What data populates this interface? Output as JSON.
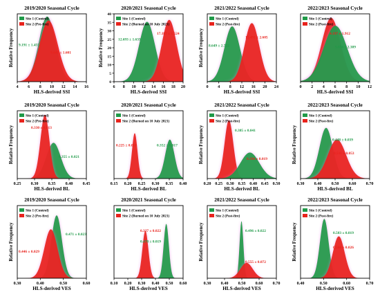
{
  "colors": {
    "site1": "#1f9a48",
    "site2": "#e8221c",
    "glow": "#ee7fe6",
    "axis": "#000000"
  },
  "chart_data": [
    {
      "type": "area",
      "title": "2019/2020 Seasonal Cycle",
      "xlabel": "HLS-derived SSI",
      "ylabel": "Relative Frequency",
      "xlim": [
        4,
        16
      ],
      "xticks": [
        "4",
        "6",
        "8",
        "10",
        "12",
        "14",
        "16"
      ],
      "show_yaxis": true,
      "legend": [
        {
          "label": "Site 1 (Control)",
          "color": "site1"
        },
        {
          "label": "Site 2 (Pre-fire)",
          "color": "site2"
        }
      ],
      "series": [
        {
          "mean": 9.191,
          "sd": 1.455,
          "label": "9.191 ± 1.455",
          "color": "site1",
          "height": 1.0
        },
        {
          "mean": 9.441,
          "sd": 1.601,
          "label": "9.441 ± 1.601",
          "color": "site2",
          "height": 0.94
        }
      ]
    },
    {
      "type": "area",
      "title": "2020/2021 Seasonal Cycle",
      "xlabel": "HLS-derived SSI",
      "ylabel": "Relative Frequency",
      "xlim": [
        6,
        20
      ],
      "xticks": [
        "6",
        "8",
        "10",
        "12",
        "14",
        "16",
        "18",
        "20"
      ],
      "yticks": [
        "0",
        "5",
        "10",
        "15",
        "20",
        "25",
        "30",
        "35",
        "40"
      ],
      "show_yaxis": true,
      "legend": [
        {
          "label": "Site 1 (Control)",
          "color": "site1"
        },
        {
          "label": "Site 2 (Burned on 10 July 2021)",
          "color": "site2"
        }
      ],
      "series": [
        {
          "mean": 12.693,
          "sd": 1.633,
          "label": "12.693 ± 1.633",
          "color": "site1",
          "height": 0.92
        },
        {
          "mean": 17.187,
          "sd": 1.524,
          "label": "17.187 ± 1.524",
          "color": "site2",
          "height": 0.95
        }
      ]
    },
    {
      "type": "area",
      "title": "2021/2022 Seasonal Cycle",
      "xlabel": "HLS-derived SSI",
      "ylabel": "Relative Frequency",
      "xlim": [
        0,
        24
      ],
      "xticks": [
        "0",
        "4",
        "8",
        "12",
        "16",
        "20",
        "24"
      ],
      "show_yaxis": true,
      "legend": [
        {
          "label": "Site 1 (Control)",
          "color": "site1"
        },
        {
          "label": "Site 2 (Post-fire)",
          "color": "site2"
        }
      ],
      "series": [
        {
          "mean": 8.649,
          "sd": 2.722,
          "label": "8.649 ± 2.722",
          "color": "site1",
          "height": 0.85
        },
        {
          "mean": 15.491,
          "sd": 2.605,
          "label": "15.491 ± 2.605",
          "color": "site2",
          "height": 0.9
        }
      ]
    },
    {
      "type": "area",
      "title": "2022/2023 Seasonal Cycle",
      "xlabel": "HLS-derived SSI",
      "ylabel": "",
      "xlim": [
        -2,
        12
      ],
      "xticks": [
        "0",
        "2",
        "4",
        "6",
        "8",
        "10",
        "12"
      ],
      "show_yaxis": false,
      "legend": [
        {
          "label": "Site 1 (Control)",
          "color": "site1"
        },
        {
          "label": "Site 2 (Post-fire)",
          "color": "site2"
        }
      ],
      "series": [
        {
          "mean": 4.197,
          "sd": 1.912,
          "label": "4.197 ± 1.912",
          "color": "site2",
          "height": 0.98
        },
        {
          "mean": 5.056,
          "sd": 2.389,
          "label": "5.056 ± 2.389",
          "color": "site1",
          "height": 0.86
        }
      ]
    },
    {
      "type": "area",
      "title": "2019/2020 Seasonal Cycle",
      "xlabel": "HLS-derived BL",
      "ylabel": "Relative Frequency",
      "xlim": [
        0.25,
        0.45
      ],
      "xticks": [
        "0.25",
        "0.30",
        "0.35",
        "0.40",
        "0.45"
      ],
      "show_yaxis": true,
      "legend": [
        {
          "label": "Site 1 (Control)",
          "color": "site1"
        },
        {
          "label": "Site 2 (Pre-fire)",
          "color": "site2"
        }
      ],
      "series": [
        {
          "mean": 0.355,
          "sd": 0.021,
          "label": "0.355 ± 0.021",
          "color": "site1",
          "height": 0.55
        },
        {
          "mean": 0.33,
          "sd": 0.013,
          "label": "0.330 ± 0.013",
          "color": "site2",
          "height": 0.98
        }
      ]
    },
    {
      "type": "area",
      "title": "2020/2021 Seasonal Cycle",
      "xlabel": "HLS-derived BL",
      "ylabel": "",
      "xlim": [
        0.15,
        0.4
      ],
      "xticks": [
        "0.15",
        "0.20",
        "0.25",
        "0.30",
        "0.35",
        "0.40"
      ],
      "show_yaxis": true,
      "legend": [
        {
          "label": "Site 1 (Control)",
          "color": "site1"
        },
        {
          "label": "Site 2 (Burned on 10 July 2021)",
          "color": "site2"
        }
      ],
      "series": [
        {
          "mean": 0.225,
          "sd": 0.01,
          "label": "0.225 ± 0.010",
          "color": "site2",
          "height": 0.7
        },
        {
          "mean": 0.352,
          "sd": 0.017,
          "label": "0.352 ± 0.017",
          "color": "site1",
          "height": 0.6
        }
      ]
    },
    {
      "type": "area",
      "title": "2021/2022 Seasonal Cycle",
      "xlabel": "HLS-derived BL",
      "ylabel": "Relative Frequency",
      "xlim": [
        0.2,
        0.5
      ],
      "xticks": [
        "0.20",
        "0.25",
        "0.30",
        "0.35",
        "0.40",
        "0.45",
        "0.50"
      ],
      "show_yaxis": true,
      "legend": [
        {
          "label": "Site 1 (Control)",
          "color": "site1"
        },
        {
          "label": "Site 2 (Post-fire)",
          "color": "site2"
        }
      ],
      "series": [
        {
          "mean": 0.294,
          "sd": 0.019,
          "label": "0.294 ± 0.019",
          "color": "site2",
          "height": 0.9
        },
        {
          "mean": 0.385,
          "sd": 0.041,
          "label": "0.385 ± 0.041",
          "color": "site1",
          "height": 0.4
        }
      ]
    },
    {
      "type": "area",
      "title": "2022/2023 Seasonal Cycle",
      "xlabel": "HLS-derived BL",
      "ylabel": "Relative Frequency",
      "xlim": [
        0.3,
        0.7
      ],
      "xticks": [
        "0.30",
        "0.40",
        "0.50",
        "0.60",
        "0.70"
      ],
      "show_yaxis": true,
      "legend": [
        {
          "label": "Site 1 (Control)",
          "color": "site1"
        },
        {
          "label": "Site 2 (Post-fire)",
          "color": "site2"
        }
      ],
      "series": [
        {
          "mean": 0.448,
          "sd": 0.039,
          "label": "0.448 ± 0.039",
          "color": "site1",
          "height": 0.78
        },
        {
          "mean": 0.511,
          "sd": 0.053,
          "label": "0.511 ± 0.053",
          "color": "site2",
          "height": 0.6
        }
      ]
    },
    {
      "type": "area",
      "title": "2019/2020 Seasonal Cycle",
      "xlabel": "HLS-derived VES",
      "ylabel": "Relative Frequency",
      "xlim": [
        0.3,
        0.6
      ],
      "xticks": [
        "0.30",
        "0.40",
        "0.50",
        "0.60"
      ],
      "show_yaxis": true,
      "legend": [
        {
          "label": "Site 1 (Control)",
          "color": "site1"
        },
        {
          "label": "Site 2 (Pre-fire)",
          "color": "site2"
        }
      ],
      "series": [
        {
          "mean": 0.471,
          "sd": 0.023,
          "label": "0.471 ± 0.023",
          "color": "site1",
          "height": 0.9
        },
        {
          "mean": 0.446,
          "sd": 0.029,
          "label": "0.446 ± 0.029",
          "color": "site2",
          "height": 0.7
        }
      ]
    },
    {
      "type": "area",
      "title": "2020/2021 Seasonal Cycle",
      "xlabel": "HLS-derived VES",
      "ylabel": "",
      "xlim": [
        0.1,
        0.6
      ],
      "xticks": [
        "0.10",
        "0.20",
        "0.30",
        "0.40",
        "0.50",
        "0.60"
      ],
      "show_yaxis": true,
      "legend": [
        {
          "label": "Site 1 (Control)",
          "color": "site1"
        },
        {
          "label": "Site 2 (Burned on 10 July 2021)",
          "color": "site2"
        }
      ],
      "series": [
        {
          "mean": 0.327,
          "sd": 0.022,
          "label": "0.327 ± 0.022",
          "color": "site2",
          "height": 0.68
        },
        {
          "mean": 0.478,
          "sd": 0.019,
          "label": "0.478 ± 0.019",
          "color": "site1",
          "height": 0.78
        }
      ]
    },
    {
      "type": "area",
      "title": "2021/2022 Seasonal Cycle",
      "xlabel": "HLS-derived VES",
      "ylabel": "Relative Frequency",
      "xlim": [
        0.1,
        0.9
      ],
      "xticks": [
        "0.30",
        "0.40",
        "0.50",
        "0.60",
        "0.70"
      ],
      "show_yaxis": true,
      "legend": [
        {
          "label": "Site 1 (Control)",
          "color": "site1"
        },
        {
          "label": "Site 2 (Post-fire)",
          "color": "site2"
        }
      ],
      "series": [
        {
          "mean": 0.496,
          "sd": 0.022,
          "label": "0.496 ± 0.022",
          "color": "site1",
          "height": 0.82
        },
        {
          "mean": 0.555,
          "sd": 0.072,
          "label": "0.555 ± 0.072",
          "color": "site2",
          "height": 0.22
        }
      ]
    },
    {
      "type": "area",
      "title": "2022/2023 Seasonal Cycle",
      "xlabel": "HLS-derived VES",
      "ylabel": "Relative Frequency",
      "xlim": [
        0.4,
        0.7
      ],
      "xticks": [
        "0.40",
        "0.50",
        "0.60",
        "0.70"
      ],
      "show_yaxis": true,
      "legend": [
        {
          "label": "Site 1 (Control)",
          "color": "site1"
        },
        {
          "label": "Site 2 (Post-fire)",
          "color": "site2"
        }
      ],
      "series": [
        {
          "mean": 0.503,
          "sd": 0.019,
          "label": "0.503 ± 0.019",
          "color": "site1",
          "height": 0.85
        },
        {
          "mean": 0.566,
          "sd": 0.026,
          "label": "0.566 ± 0.026",
          "color": "site2",
          "height": 0.6
        }
      ]
    }
  ]
}
